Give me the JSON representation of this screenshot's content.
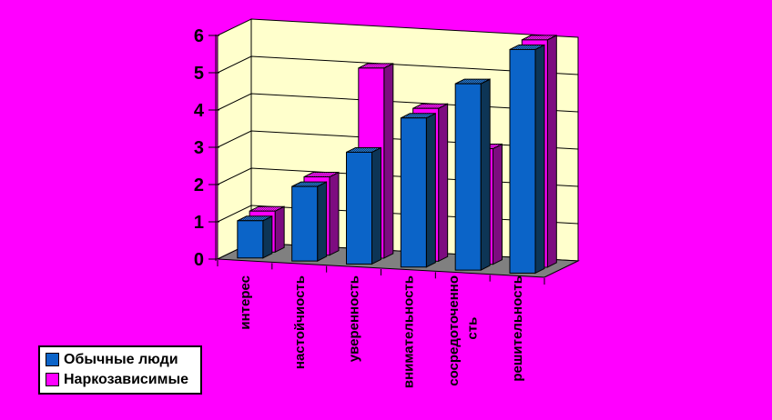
{
  "colors": {
    "background": "#FF00FF",
    "plot_wall": "#FFFFCC",
    "floor": "#808080",
    "grid": "#000000",
    "text": "#000000",
    "legend_background": "#FFFFFF"
  },
  "chart_data": {
    "type": "bar",
    "projection": "3d",
    "title": "",
    "xlabel": "",
    "ylabel": "",
    "categories": [
      "интерес",
      "настойчиость",
      "уверенность",
      "внимательность",
      "сосредоточенно сть",
      "решительность"
    ],
    "categories_lines": [
      [
        "интерес"
      ],
      [
        "настойчиость"
      ],
      [
        "уверенность"
      ],
      [
        "внимательность"
      ],
      [
        "сосредоточенно",
        "сть"
      ],
      [
        "решительность"
      ]
    ],
    "series": [
      {
        "name": "Обычные люди",
        "color": "#0B64C8",
        "side_color": "#0D3556",
        "top_dark": "#0A3E73",
        "top_light": "#2F7BD0",
        "values": [
          1,
          2,
          3,
          4,
          5,
          6
        ]
      },
      {
        "name": "Наркозависимые",
        "color": "#FF00FF",
        "side_color": "#7D0C80",
        "top_dark": "#99009A",
        "top_light": "#FF22FF",
        "values": [
          1.1,
          2.1,
          5.1,
          4.1,
          3.1,
          6.1
        ]
      }
    ],
    "ylim": [
      0,
      6
    ],
    "yticks": [
      0,
      1,
      2,
      3,
      4,
      5,
      6
    ],
    "grid": true,
    "legend_position": "bottom-left"
  }
}
